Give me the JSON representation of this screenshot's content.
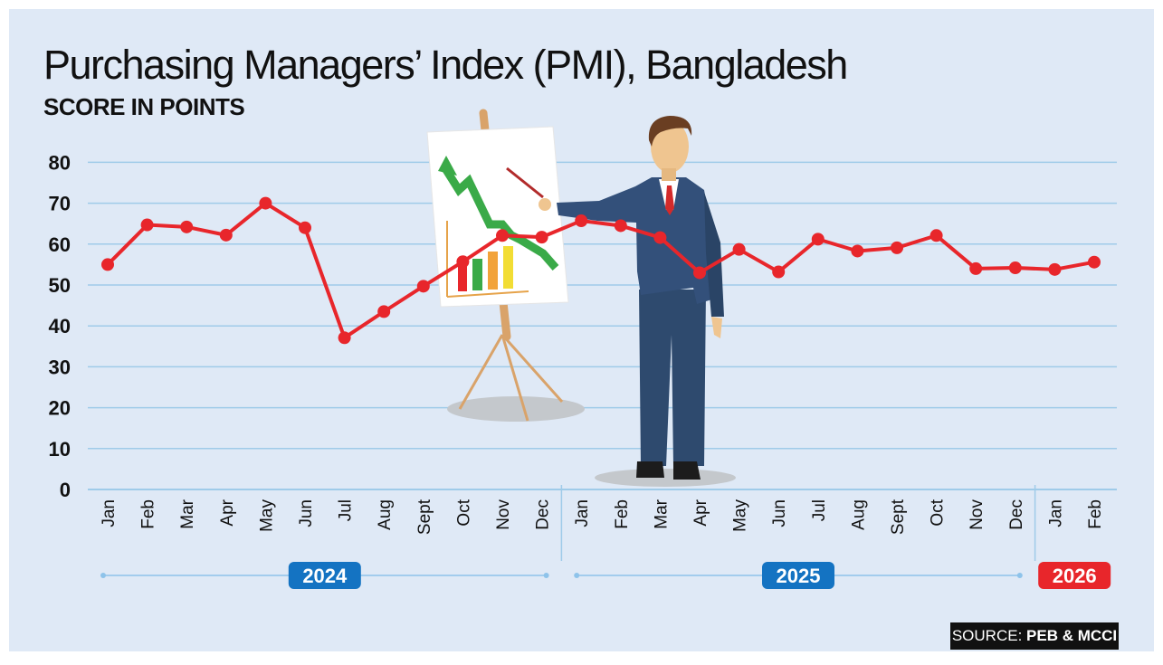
{
  "title": "Purchasing Managers’ Index (PMI), Bangladesh",
  "subtitle": "SCORE IN POINTS",
  "source": {
    "prefix": "SOURCE: ",
    "name": "PEB & MCCI"
  },
  "colors": {
    "background": "#dfe9f6",
    "line": "#e8262b",
    "grid": "#9fcbe9",
    "badge_2024": "#1473c2",
    "badge_2025": "#1473c2",
    "badge_2026": "#e8262b"
  },
  "chart_data": {
    "type": "line",
    "title": "Purchasing Managers’ Index (PMI), Bangladesh",
    "ylabel": "SCORE IN POINTS",
    "ylim": [
      0,
      80
    ],
    "yticks": [
      0,
      10,
      20,
      30,
      40,
      50,
      60,
      70,
      80
    ],
    "grid": true,
    "categories": [
      "Jan",
      "Feb",
      "Mar",
      "Apr",
      "May",
      "Jun",
      "Jul",
      "Aug",
      "Sept",
      "Oct",
      "Nov",
      "Dec",
      "Jan",
      "Feb",
      "Mar",
      "Apr",
      "May",
      "Jun",
      "Jul",
      "Aug",
      "Sept",
      "Oct",
      "Nov",
      "Dec",
      "Jan",
      "Feb"
    ],
    "values": [
      55.0,
      64.7,
      64.2,
      62.2,
      70.0,
      64.0,
      37.1,
      43.5,
      49.7,
      55.7,
      62.1,
      61.7,
      65.7,
      64.5,
      61.6,
      53.0,
      58.7,
      53.2,
      61.2,
      58.3,
      59.1,
      62.1,
      54.0,
      54.2,
      53.8,
      55.6
    ],
    "year_groups": [
      {
        "label": "2024",
        "start": 0,
        "end": 11
      },
      {
        "label": "2025",
        "start": 12,
        "end": 23
      },
      {
        "label": "2026",
        "start": 24,
        "end": 25
      }
    ]
  }
}
